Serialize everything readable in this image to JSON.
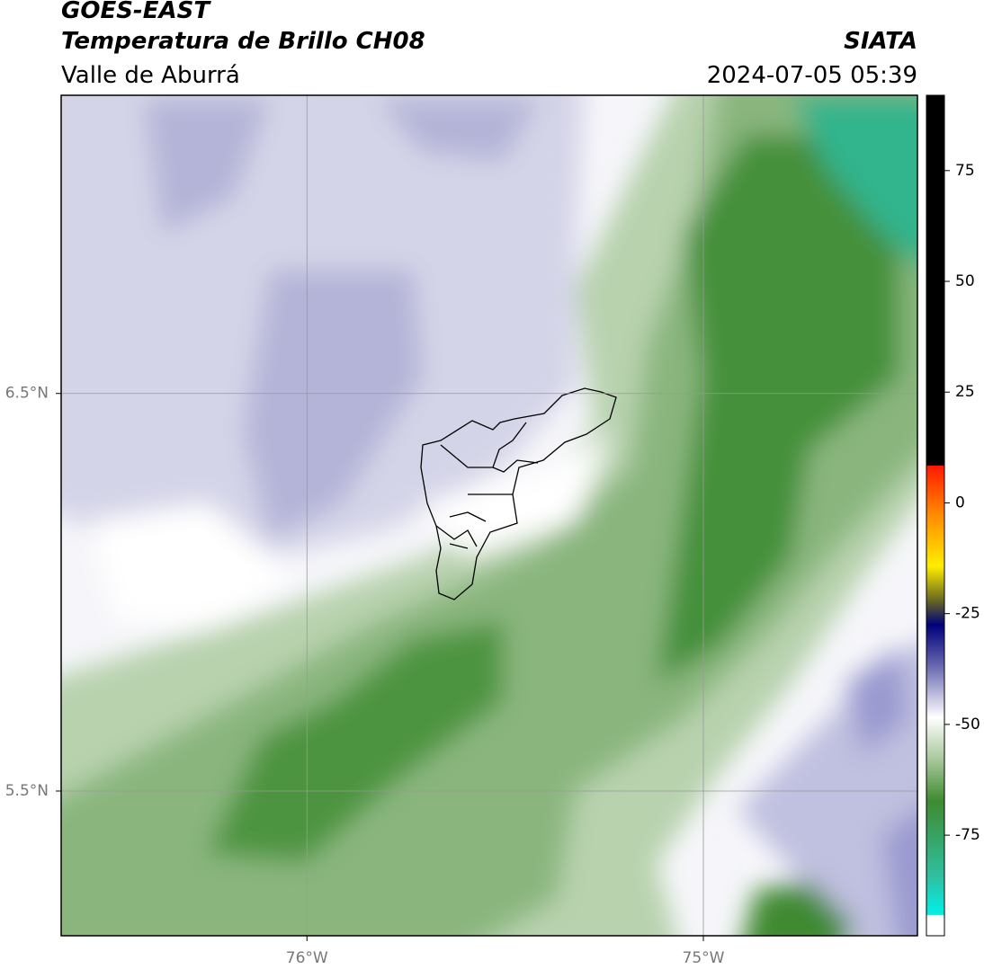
{
  "header": {
    "title": "GOES-EAST",
    "subtitle": "Temperatura de Brillo CH08",
    "region": "Valle de Aburrá",
    "source": "SIATA",
    "datetime": "2024-07-05 05:39"
  },
  "map": {
    "xlim": [
      -76.62,
      -74.46
    ],
    "ylim": [
      5.136,
      7.25
    ],
    "xticks": [
      {
        "value": -76,
        "label": "76°W"
      },
      {
        "value": -75,
        "label": "75°W"
      }
    ],
    "yticks": [
      {
        "value": 6.5,
        "label": "6.5°N"
      },
      {
        "value": 5.5,
        "label": "5.5°N"
      }
    ],
    "grid": true
  },
  "colorbar": {
    "ylim": [
      -97.7,
      92
    ],
    "yticks": [
      75,
      50,
      25,
      0,
      -25,
      -50,
      -75
    ]
  }
}
